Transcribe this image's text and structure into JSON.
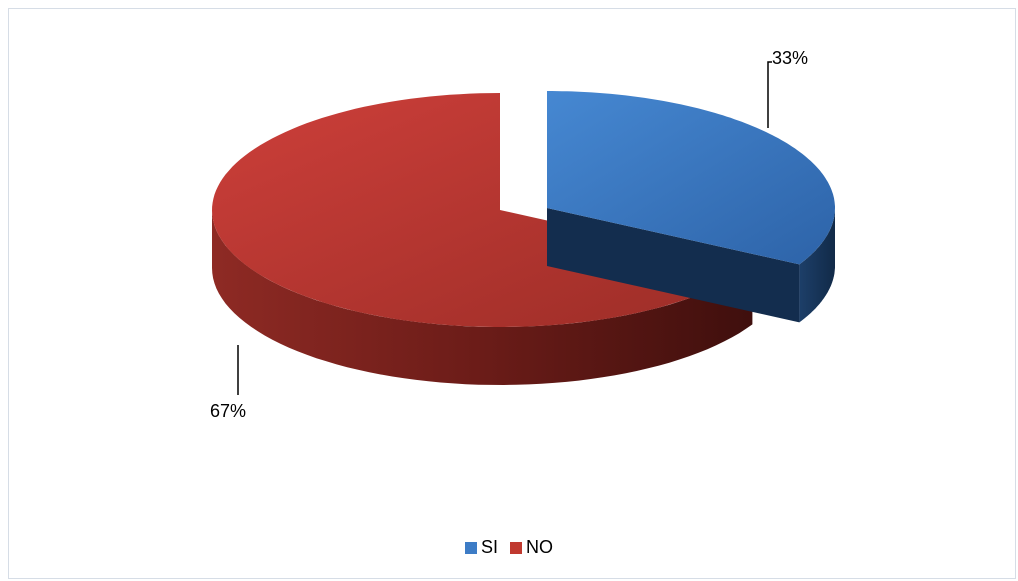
{
  "chart_data": {
    "type": "pie",
    "style": "3d-exploded",
    "categories": [
      "SI",
      "NO"
    ],
    "values": [
      33,
      67
    ],
    "data_labels": [
      "33%",
      "67%"
    ],
    "colors": [
      "#3d7cc6",
      "#c0392f"
    ],
    "legend_position": "bottom"
  }
}
